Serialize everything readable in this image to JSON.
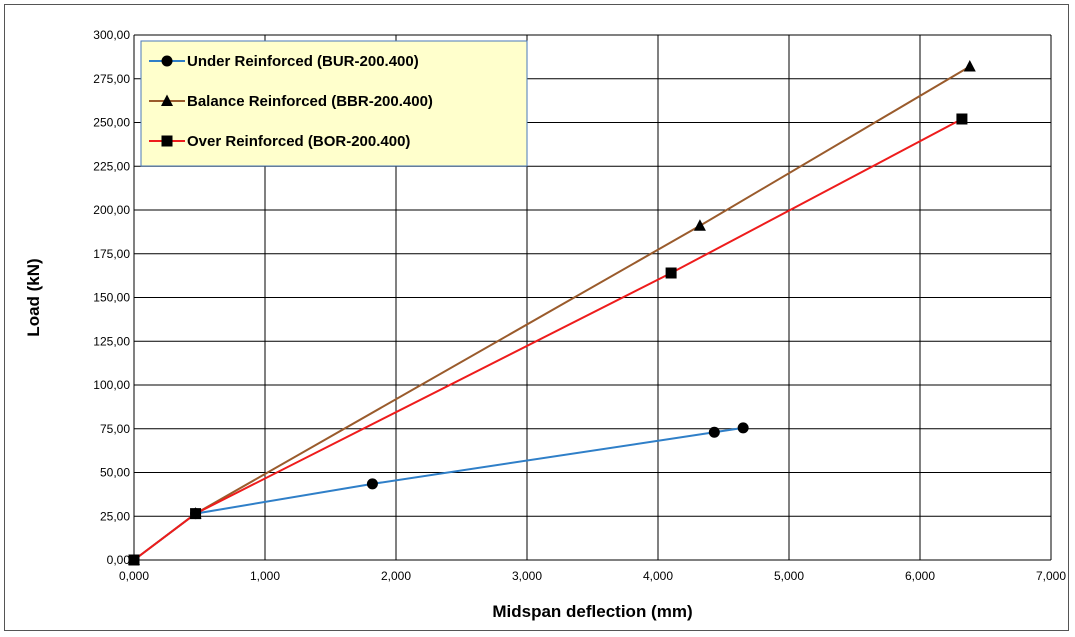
{
  "chart_data": {
    "type": "line",
    "title": "",
    "xlabel": "Midspan deflection (mm)",
    "ylabel": "Load (kN)",
    "xlim": [
      0,
      7
    ],
    "ylim": [
      0,
      300
    ],
    "x_ticks": [
      "0,000",
      "1,000",
      "2,000",
      "3,000",
      "4,000",
      "5,000",
      "6,000",
      "7,000"
    ],
    "y_ticks": [
      "0,00",
      "25,00",
      "50,00",
      "75,00",
      "100,00",
      "125,00",
      "150,00",
      "175,00",
      "200,00",
      "225,00",
      "250,00",
      "275,00",
      "300,00"
    ],
    "grid": true,
    "legend_position": "top-left",
    "series": [
      {
        "name": "Under Reinforced (BUR-200.400)",
        "color": "#2f7fc8",
        "marker": "circle",
        "points": [
          [
            0,
            0
          ],
          [
            0.47,
            26.5
          ],
          [
            1.82,
            43.5
          ],
          [
            4.43,
            73
          ],
          [
            4.65,
            75.5
          ]
        ]
      },
      {
        "name": "Balance Reinforced (BBR-200.400)",
        "color": "#9a5b2c",
        "marker": "triangle",
        "points": [
          [
            0,
            0
          ],
          [
            0.47,
            26.5
          ],
          [
            4.32,
            191
          ],
          [
            6.38,
            282
          ]
        ]
      },
      {
        "name": "Over Reinforced (BOR-200.400)",
        "color": "#ee1c1c",
        "marker": "square",
        "points": [
          [
            0,
            0
          ],
          [
            0.47,
            26.5
          ],
          [
            4.1,
            164
          ],
          [
            6.32,
            252
          ]
        ]
      }
    ]
  }
}
